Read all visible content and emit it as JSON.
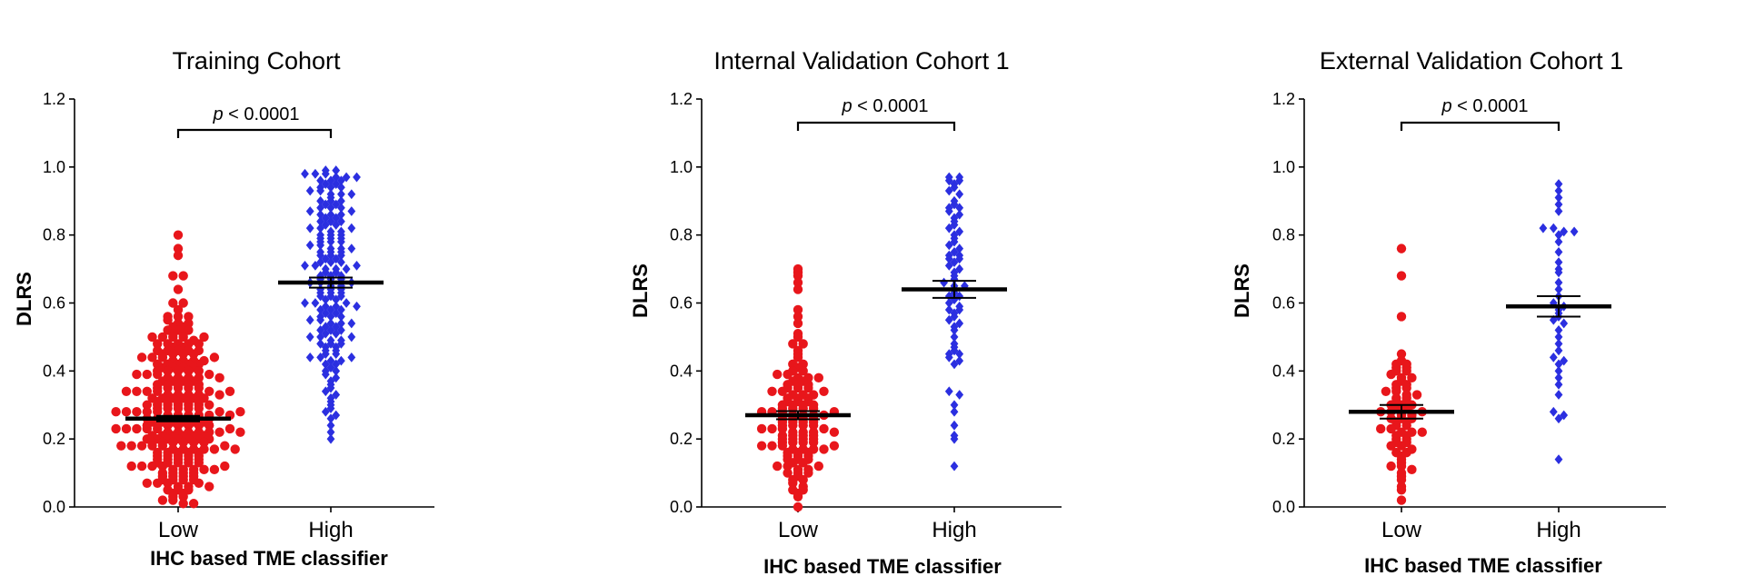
{
  "colors": {
    "low": "#e8161b",
    "high": "#2b2fe0",
    "mean": "#000000"
  },
  "chart_data": [
    {
      "type": "scatter",
      "title": "Training Cohort",
      "xlabel": "IHC based TME classifier",
      "ylabel": "DLRS",
      "ylim": [
        0,
        1.2
      ],
      "yticks": [
        "0.0",
        "0.2",
        "0.4",
        "0.6",
        "0.8",
        "1.0",
        "1.2"
      ],
      "categories": [
        "Low",
        "High"
      ],
      "significance": {
        "prefix": "p",
        "text": " < 0.0001"
      },
      "series": [
        {
          "category": "Low",
          "marker": "circle",
          "mean": 0.26,
          "sem": 0.008,
          "n": 260,
          "values": [
            0.8,
            0.76,
            0.74,
            0.68,
            0.68,
            0.64,
            0.6,
            0.6,
            0.58,
            0.56,
            0.56,
            0.56,
            0.55,
            0.54,
            0.54,
            0.53,
            0.53,
            0.52,
            0.52,
            0.51,
            0.51,
            0.5,
            0.5,
            0.5,
            0.5,
            0.49,
            0.48,
            0.48,
            0.48,
            0.48,
            0.47,
            0.47,
            0.46,
            0.46,
            0.46,
            0.46,
            0.45,
            0.45,
            0.45,
            0.44,
            0.44,
            0.44,
            0.43,
            0.43,
            0.43,
            0.42,
            0.42,
            0.42,
            0.42,
            0.41,
            0.41,
            0.41,
            0.4,
            0.4,
            0.4,
            0.4,
            0.39,
            0.39,
            0.39,
            0.38,
            0.38,
            0.38,
            0.38,
            0.37,
            0.37,
            0.37,
            0.36,
            0.36,
            0.36,
            0.36,
            0.35,
            0.35,
            0.35,
            0.35,
            0.34,
            0.34,
            0.34,
            0.34,
            0.33,
            0.33,
            0.33,
            0.33,
            0.32,
            0.32,
            0.32,
            0.32,
            0.31,
            0.31,
            0.31,
            0.31,
            0.3,
            0.3,
            0.3,
            0.3,
            0.3,
            0.29,
            0.29,
            0.29,
            0.29,
            0.28,
            0.28,
            0.28,
            0.28,
            0.28,
            0.27,
            0.27,
            0.27,
            0.27,
            0.27,
            0.26,
            0.26,
            0.26,
            0.26,
            0.26,
            0.25,
            0.25,
            0.25,
            0.25,
            0.25,
            0.24,
            0.24,
            0.24,
            0.24,
            0.24,
            0.23,
            0.23,
            0.23,
            0.23,
            0.23,
            0.22,
            0.22,
            0.22,
            0.22,
            0.22,
            0.21,
            0.21,
            0.21,
            0.21,
            0.21,
            0.2,
            0.2,
            0.2,
            0.2,
            0.2,
            0.19,
            0.19,
            0.19,
            0.19,
            0.19,
            0.18,
            0.18,
            0.18,
            0.18,
            0.18,
            0.17,
            0.17,
            0.17,
            0.17,
            0.17,
            0.16,
            0.16,
            0.16,
            0.16,
            0.15,
            0.15,
            0.15,
            0.15,
            0.14,
            0.14,
            0.14,
            0.14,
            0.13,
            0.13,
            0.13,
            0.13,
            0.12,
            0.12,
            0.12,
            0.12,
            0.11,
            0.11,
            0.11,
            0.11,
            0.1,
            0.1,
            0.1,
            0.09,
            0.09,
            0.09,
            0.08,
            0.08,
            0.08,
            0.07,
            0.07,
            0.07,
            0.06,
            0.06,
            0.05,
            0.05,
            0.04,
            0.04,
            0.03,
            0.02,
            0.02,
            0.01,
            0.01,
            0.34,
            0.32,
            0.3,
            0.28,
            0.26,
            0.24,
            0.22,
            0.2,
            0.18,
            0.16,
            0.35,
            0.31,
            0.27,
            0.23,
            0.19,
            0.15,
            0.29,
            0.25,
            0.21,
            0.33,
            0.37,
            0.41,
            0.45,
            0.39,
            0.43,
            0.17,
            0.13,
            0.11,
            0.09,
            0.07,
            0.05,
            0.03,
            0.36,
            0.38,
            0.4,
            0.42,
            0.44,
            0.46,
            0.48,
            0.5,
            0.52,
            0.28,
            0.26,
            0.24,
            0.22,
            0.2,
            0.3,
            0.32,
            0.34,
            0.14,
            0.12,
            0.1,
            0.08,
            0.06
          ]
        },
        {
          "category": "High",
          "marker": "diamond",
          "mean": 0.66,
          "sem": 0.015,
          "n": 170,
          "values": [
            0.99,
            0.99,
            0.98,
            0.98,
            0.98,
            0.97,
            0.97,
            0.97,
            0.96,
            0.96,
            0.95,
            0.95,
            0.94,
            0.94,
            0.93,
            0.93,
            0.92,
            0.92,
            0.91,
            0.9,
            0.9,
            0.89,
            0.89,
            0.88,
            0.88,
            0.87,
            0.86,
            0.86,
            0.85,
            0.85,
            0.84,
            0.84,
            0.83,
            0.82,
            0.82,
            0.81,
            0.81,
            0.8,
            0.8,
            0.79,
            0.79,
            0.78,
            0.78,
            0.77,
            0.77,
            0.76,
            0.76,
            0.75,
            0.75,
            0.74,
            0.74,
            0.73,
            0.73,
            0.72,
            0.72,
            0.71,
            0.71,
            0.7,
            0.7,
            0.69,
            0.69,
            0.68,
            0.68,
            0.67,
            0.67,
            0.66,
            0.66,
            0.65,
            0.65,
            0.64,
            0.64,
            0.63,
            0.63,
            0.62,
            0.62,
            0.61,
            0.61,
            0.6,
            0.6,
            0.59,
            0.59,
            0.58,
            0.58,
            0.57,
            0.57,
            0.56,
            0.56,
            0.55,
            0.55,
            0.54,
            0.54,
            0.53,
            0.53,
            0.52,
            0.52,
            0.51,
            0.51,
            0.5,
            0.5,
            0.49,
            0.49,
            0.48,
            0.48,
            0.47,
            0.47,
            0.46,
            0.46,
            0.45,
            0.45,
            0.44,
            0.44,
            0.43,
            0.43,
            0.42,
            0.42,
            0.41,
            0.4,
            0.4,
            0.39,
            0.38,
            0.37,
            0.36,
            0.35,
            0.34,
            0.33,
            0.32,
            0.31,
            0.3,
            0.29,
            0.28,
            0.27,
            0.26,
            0.24,
            0.22,
            0.2,
            0.92,
            0.88,
            0.84,
            0.8,
            0.76,
            0.72,
            0.68,
            0.64,
            0.6,
            0.56,
            0.52,
            0.48,
            0.44,
            0.86,
            0.78,
            0.7,
            0.62,
            0.54,
            0.9,
            0.82,
            0.74,
            0.66,
            0.58,
            0.5,
            0.96,
            0.94,
            0.87,
            0.83,
            0.79,
            0.75,
            0.71,
            0.67,
            0.63,
            0.59
          ]
        }
      ]
    },
    {
      "type": "scatter",
      "title": "Internal Validation Cohort 1",
      "xlabel": "IHC based TME classifier",
      "ylabel": "DLRS",
      "ylim": [
        0,
        1.2
      ],
      "yticks": [
        "0.0",
        "0.2",
        "0.4",
        "0.6",
        "0.8",
        "1.0",
        "1.2"
      ],
      "categories": [
        "Low",
        "High"
      ],
      "significance": {
        "prefix": "p",
        "text": " < 0.0001"
      },
      "series": [
        {
          "category": "Low",
          "marker": "circle",
          "mean": 0.27,
          "sem": 0.012,
          "n": 130,
          "values": [
            0.7,
            0.69,
            0.68,
            0.66,
            0.64,
            0.58,
            0.56,
            0.54,
            0.51,
            0.5,
            0.48,
            0.48,
            0.46,
            0.45,
            0.44,
            0.42,
            0.42,
            0.4,
            0.4,
            0.39,
            0.39,
            0.38,
            0.38,
            0.37,
            0.37,
            0.36,
            0.36,
            0.35,
            0.35,
            0.34,
            0.34,
            0.33,
            0.33,
            0.32,
            0.32,
            0.31,
            0.31,
            0.3,
            0.3,
            0.3,
            0.29,
            0.29,
            0.29,
            0.28,
            0.28,
            0.28,
            0.27,
            0.27,
            0.27,
            0.26,
            0.26,
            0.26,
            0.25,
            0.25,
            0.25,
            0.24,
            0.24,
            0.24,
            0.23,
            0.23,
            0.23,
            0.22,
            0.22,
            0.22,
            0.21,
            0.21,
            0.21,
            0.2,
            0.2,
            0.2,
            0.19,
            0.19,
            0.19,
            0.18,
            0.18,
            0.18,
            0.17,
            0.17,
            0.17,
            0.16,
            0.16,
            0.15,
            0.15,
            0.14,
            0.14,
            0.13,
            0.13,
            0.12,
            0.12,
            0.11,
            0.11,
            0.1,
            0.1,
            0.09,
            0.08,
            0.08,
            0.07,
            0.06,
            0.05,
            0.05,
            0.04,
            0.03,
            0.0,
            0.35,
            0.33,
            0.31,
            0.29,
            0.27,
            0.25,
            0.23,
            0.21,
            0.19,
            0.17,
            0.15,
            0.24,
            0.26,
            0.28,
            0.3,
            0.32,
            0.34,
            0.36,
            0.38,
            0.22,
            0.2,
            0.18,
            0.16,
            0.14,
            0.12,
            0.1,
            0.41
          ]
        },
        {
          "category": "High",
          "marker": "diamond",
          "mean": 0.64,
          "sem": 0.025,
          "n": 70,
          "values": [
            0.97,
            0.97,
            0.96,
            0.96,
            0.95,
            0.94,
            0.93,
            0.92,
            0.9,
            0.89,
            0.88,
            0.88,
            0.87,
            0.86,
            0.85,
            0.84,
            0.83,
            0.82,
            0.81,
            0.8,
            0.79,
            0.78,
            0.77,
            0.76,
            0.75,
            0.74,
            0.74,
            0.73,
            0.73,
            0.72,
            0.71,
            0.7,
            0.69,
            0.68,
            0.67,
            0.66,
            0.65,
            0.64,
            0.63,
            0.62,
            0.61,
            0.6,
            0.59,
            0.58,
            0.57,
            0.56,
            0.55,
            0.54,
            0.53,
            0.52,
            0.5,
            0.48,
            0.47,
            0.46,
            0.45,
            0.45,
            0.44,
            0.43,
            0.42,
            0.34,
            0.33,
            0.3,
            0.28,
            0.24,
            0.21,
            0.2,
            0.12,
            0.65,
            0.62,
            0.58
          ]
        }
      ]
    },
    {
      "type": "scatter",
      "title": "External Validation Cohort 1",
      "xlabel": "IHC based TME classifier",
      "ylabel": "DLRS",
      "ylim": [
        0,
        1.2
      ],
      "yticks": [
        "0.0",
        "0.2",
        "0.4",
        "0.6",
        "0.8",
        "1.0",
        "1.2"
      ],
      "categories": [
        "Low",
        "High"
      ],
      "significance": {
        "prefix": "p",
        "text": " < 0.0001"
      },
      "series": [
        {
          "category": "Low",
          "marker": "circle",
          "mean": 0.28,
          "sem": 0.02,
          "n": 72,
          "values": [
            0.76,
            0.68,
            0.56,
            0.45,
            0.43,
            0.42,
            0.42,
            0.41,
            0.41,
            0.4,
            0.4,
            0.39,
            0.38,
            0.38,
            0.37,
            0.36,
            0.36,
            0.35,
            0.35,
            0.34,
            0.34,
            0.33,
            0.33,
            0.32,
            0.32,
            0.31,
            0.31,
            0.3,
            0.3,
            0.29,
            0.29,
            0.28,
            0.28,
            0.27,
            0.27,
            0.26,
            0.26,
            0.25,
            0.25,
            0.24,
            0.24,
            0.23,
            0.23,
            0.22,
            0.22,
            0.21,
            0.21,
            0.2,
            0.2,
            0.19,
            0.18,
            0.18,
            0.17,
            0.16,
            0.15,
            0.14,
            0.13,
            0.12,
            0.12,
            0.11,
            0.1,
            0.09,
            0.08,
            0.06,
            0.05,
            0.02,
            0.3,
            0.28,
            0.26,
            0.22,
            0.19,
            0.16
          ]
        },
        {
          "category": "High",
          "marker": "diamond",
          "mean": 0.59,
          "sem": 0.03,
          "n": 40,
          "values": [
            0.95,
            0.93,
            0.91,
            0.89,
            0.87,
            0.82,
            0.82,
            0.81,
            0.81,
            0.8,
            0.78,
            0.75,
            0.72,
            0.7,
            0.69,
            0.66,
            0.64,
            0.62,
            0.6,
            0.58,
            0.57,
            0.56,
            0.55,
            0.54,
            0.52,
            0.5,
            0.48,
            0.46,
            0.44,
            0.43,
            0.42,
            0.4,
            0.38,
            0.36,
            0.33,
            0.28,
            0.27,
            0.26,
            0.14,
            0.59
          ]
        }
      ]
    }
  ]
}
